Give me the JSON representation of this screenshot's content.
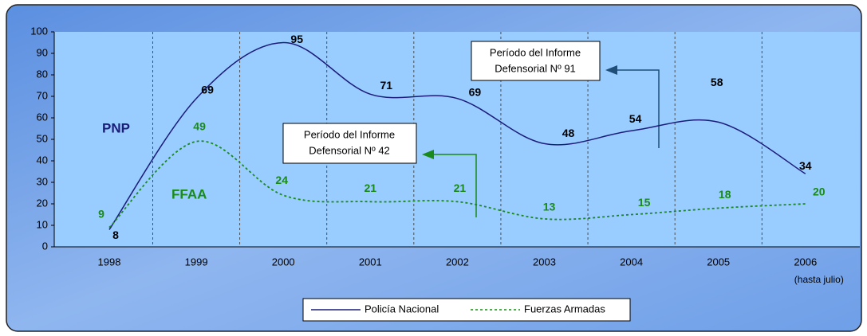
{
  "chart_data": {
    "type": "line",
    "categories": [
      "1998",
      "1999",
      "2000",
      "2001",
      "2002",
      "2003",
      "2004",
      "2005",
      "2006"
    ],
    "category_note": "(hasta julio)",
    "series": [
      {
        "name": "Policía Nacional",
        "color": "#1c1c7a",
        "dashed": false,
        "values": [
          8,
          69,
          95,
          71,
          69,
          48,
          54,
          58,
          34
        ]
      },
      {
        "name": "Fuerzas Armadas",
        "color": "#1a8a1a",
        "dashed": true,
        "values": [
          9,
          49,
          24,
          21,
          21,
          13,
          15,
          18,
          20
        ]
      }
    ],
    "ylim": [
      0,
      100
    ],
    "yticks": [
      0,
      10,
      20,
      30,
      40,
      50,
      60,
      70,
      80,
      90,
      100
    ],
    "grid": true,
    "legend": "bottom",
    "annotations": {
      "pnp": "PNP",
      "ffaa": "FFAA",
      "informe91": [
        "Período del Informe",
        "Defensorial Nº 91"
      ],
      "informe42": [
        "Período del Informe",
        "Defensorial Nº 42"
      ]
    }
  }
}
